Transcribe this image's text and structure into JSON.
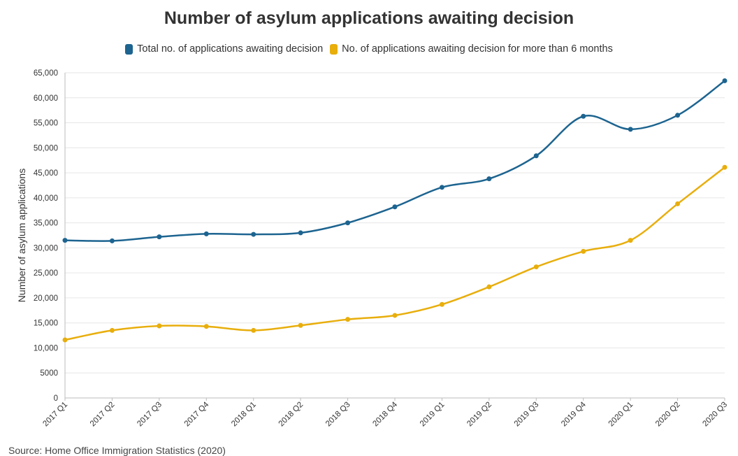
{
  "title": "Number of asylum applications awaiting decision",
  "source": "Source: Home Office Immigration Statistics (2020)",
  "colors": {
    "total": "#1d6490",
    "over6": "#e8ae0c"
  },
  "legend": [
    {
      "label": "Total no. of applications awaiting decision",
      "color": "#1d6490"
    },
    {
      "label": "No. of applications awaiting decision for more than 6 months",
      "color": "#e8ae0c"
    }
  ],
  "chart_data": {
    "type": "line",
    "title": "Number of asylum applications awaiting decision",
    "xlabel": "",
    "ylabel": "Number of asylum applications",
    "categories": [
      "2017 Q1",
      "2017 Q2",
      "2017 Q3",
      "2017 Q4",
      "2018 Q1",
      "2018 Q2",
      "2018 Q3",
      "2018 Q4",
      "2019 Q1",
      "2019 Q2",
      "2019 Q3",
      "2019 Q4",
      "2020 Q1",
      "2020 Q2",
      "2020 Q3"
    ],
    "ylim": [
      0,
      65000
    ],
    "yticks": [
      0,
      5000,
      10000,
      15000,
      20000,
      25000,
      30000,
      35000,
      40000,
      45000,
      50000,
      55000,
      60000,
      65000
    ],
    "ytick_labels": [
      "0",
      "5000",
      "10,000",
      "15,000",
      "20,000",
      "25,000",
      "30,000",
      "35,000",
      "40,000",
      "45,000",
      "50,000",
      "55,000",
      "60,000",
      "65,000"
    ],
    "grid": true,
    "legend_position": "top",
    "series": [
      {
        "name": "Total no. of applications awaiting decision",
        "color": "#1d6490",
        "values": [
          31500,
          31400,
          32200,
          32800,
          32700,
          33000,
          35000,
          38200,
          42100,
          43800,
          48400,
          56300,
          53700,
          56500,
          63400
        ]
      },
      {
        "name": "No. of applications awaiting decision for more than 6 months",
        "color": "#e8ae0c",
        "values": [
          11600,
          13500,
          14400,
          14300,
          13500,
          14500,
          15700,
          16500,
          18700,
          22200,
          26200,
          29300,
          31500,
          38800,
          46100
        ]
      }
    ]
  }
}
